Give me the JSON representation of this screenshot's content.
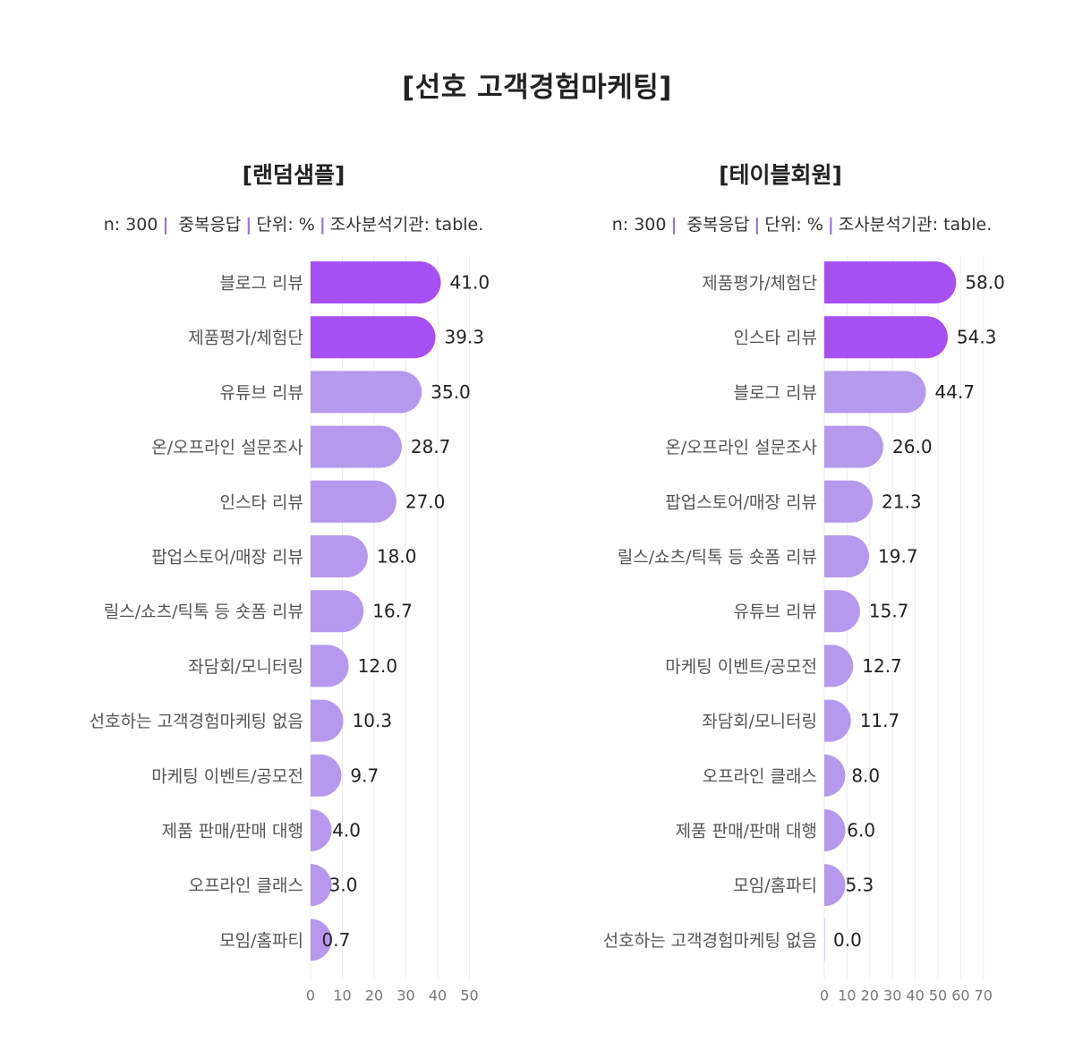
{
  "title": "[선호 고객경험마케팅]",
  "colors": {
    "highlight": "#a64ff3",
    "base": "#b698ef",
    "grid": "#ececec",
    "separator": "#9b6ddc"
  },
  "chart_data": [
    {
      "type": "bar",
      "orientation": "horizontal",
      "title": "[랜덤샘플]",
      "meta": {
        "n": "n: 300",
        "multi": "중복응답",
        "unit": "단위: %",
        "source": "조사분석기관: table."
      },
      "categories": [
        "블로그 리뷰",
        "제품평가/체험단",
        "유튜브 리뷰",
        "온/오프라인 설문조사",
        "인스타 리뷰",
        "팝업스토어/매장 리뷰",
        "릴스/쇼츠/틱톡 등 숏폼 리뷰",
        "좌담회/모니터링",
        "선호하는 고객경험마케팅 없음",
        "마케팅 이벤트/공모전",
        "제품 판매/판매 대행",
        "오프라인 클래스",
        "모임/홈파티"
      ],
      "values": [
        41.0,
        39.3,
        35.0,
        28.7,
        27.0,
        18.0,
        16.7,
        12.0,
        10.3,
        9.7,
        4.0,
        3.0,
        0.7
      ],
      "value_labels": [
        "41.0",
        "39.3",
        "35.0",
        "28.7",
        "27.0",
        "18.0",
        "16.7",
        "12.0",
        "10.3",
        "9.7",
        "4.0",
        "3.0",
        "0.7"
      ],
      "highlight_top": 2,
      "xlim": [
        0,
        50
      ],
      "xticks": [
        0,
        10,
        20,
        30,
        40,
        50
      ],
      "grid": true
    },
    {
      "type": "bar",
      "orientation": "horizontal",
      "title": "[테이블회원]",
      "meta": {
        "n": "n: 300",
        "multi": "중복응답",
        "unit": "단위: %",
        "source": "조사분석기관: table."
      },
      "categories": [
        "제품평가/체험단",
        "인스타 리뷰",
        "블로그 리뷰",
        "온/오프라인 설문조사",
        "팝업스토어/매장 리뷰",
        "릴스/쇼츠/틱톡 등 숏폼 리뷰",
        "유튜브 리뷰",
        "마케팅 이벤트/공모전",
        "좌담회/모니터링",
        "오프라인 클래스",
        "제품 판매/판매 대행",
        "모임/홈파티",
        "선호하는 고객경험마케팅 없음"
      ],
      "values": [
        58.0,
        54.3,
        44.7,
        26.0,
        21.3,
        19.7,
        15.7,
        12.7,
        11.7,
        8.0,
        6.0,
        5.3,
        0.0
      ],
      "value_labels": [
        "58.0",
        "54.3",
        "44.7",
        "26.0",
        "21.3",
        "19.7",
        "15.7",
        "12.7",
        "11.7",
        "8.0",
        "6.0",
        "5.3",
        "0.0"
      ],
      "highlight_top": 2,
      "xlim": [
        0,
        70
      ],
      "xticks": [
        0,
        10,
        20,
        30,
        40,
        50,
        60,
        70
      ],
      "grid": true
    }
  ]
}
